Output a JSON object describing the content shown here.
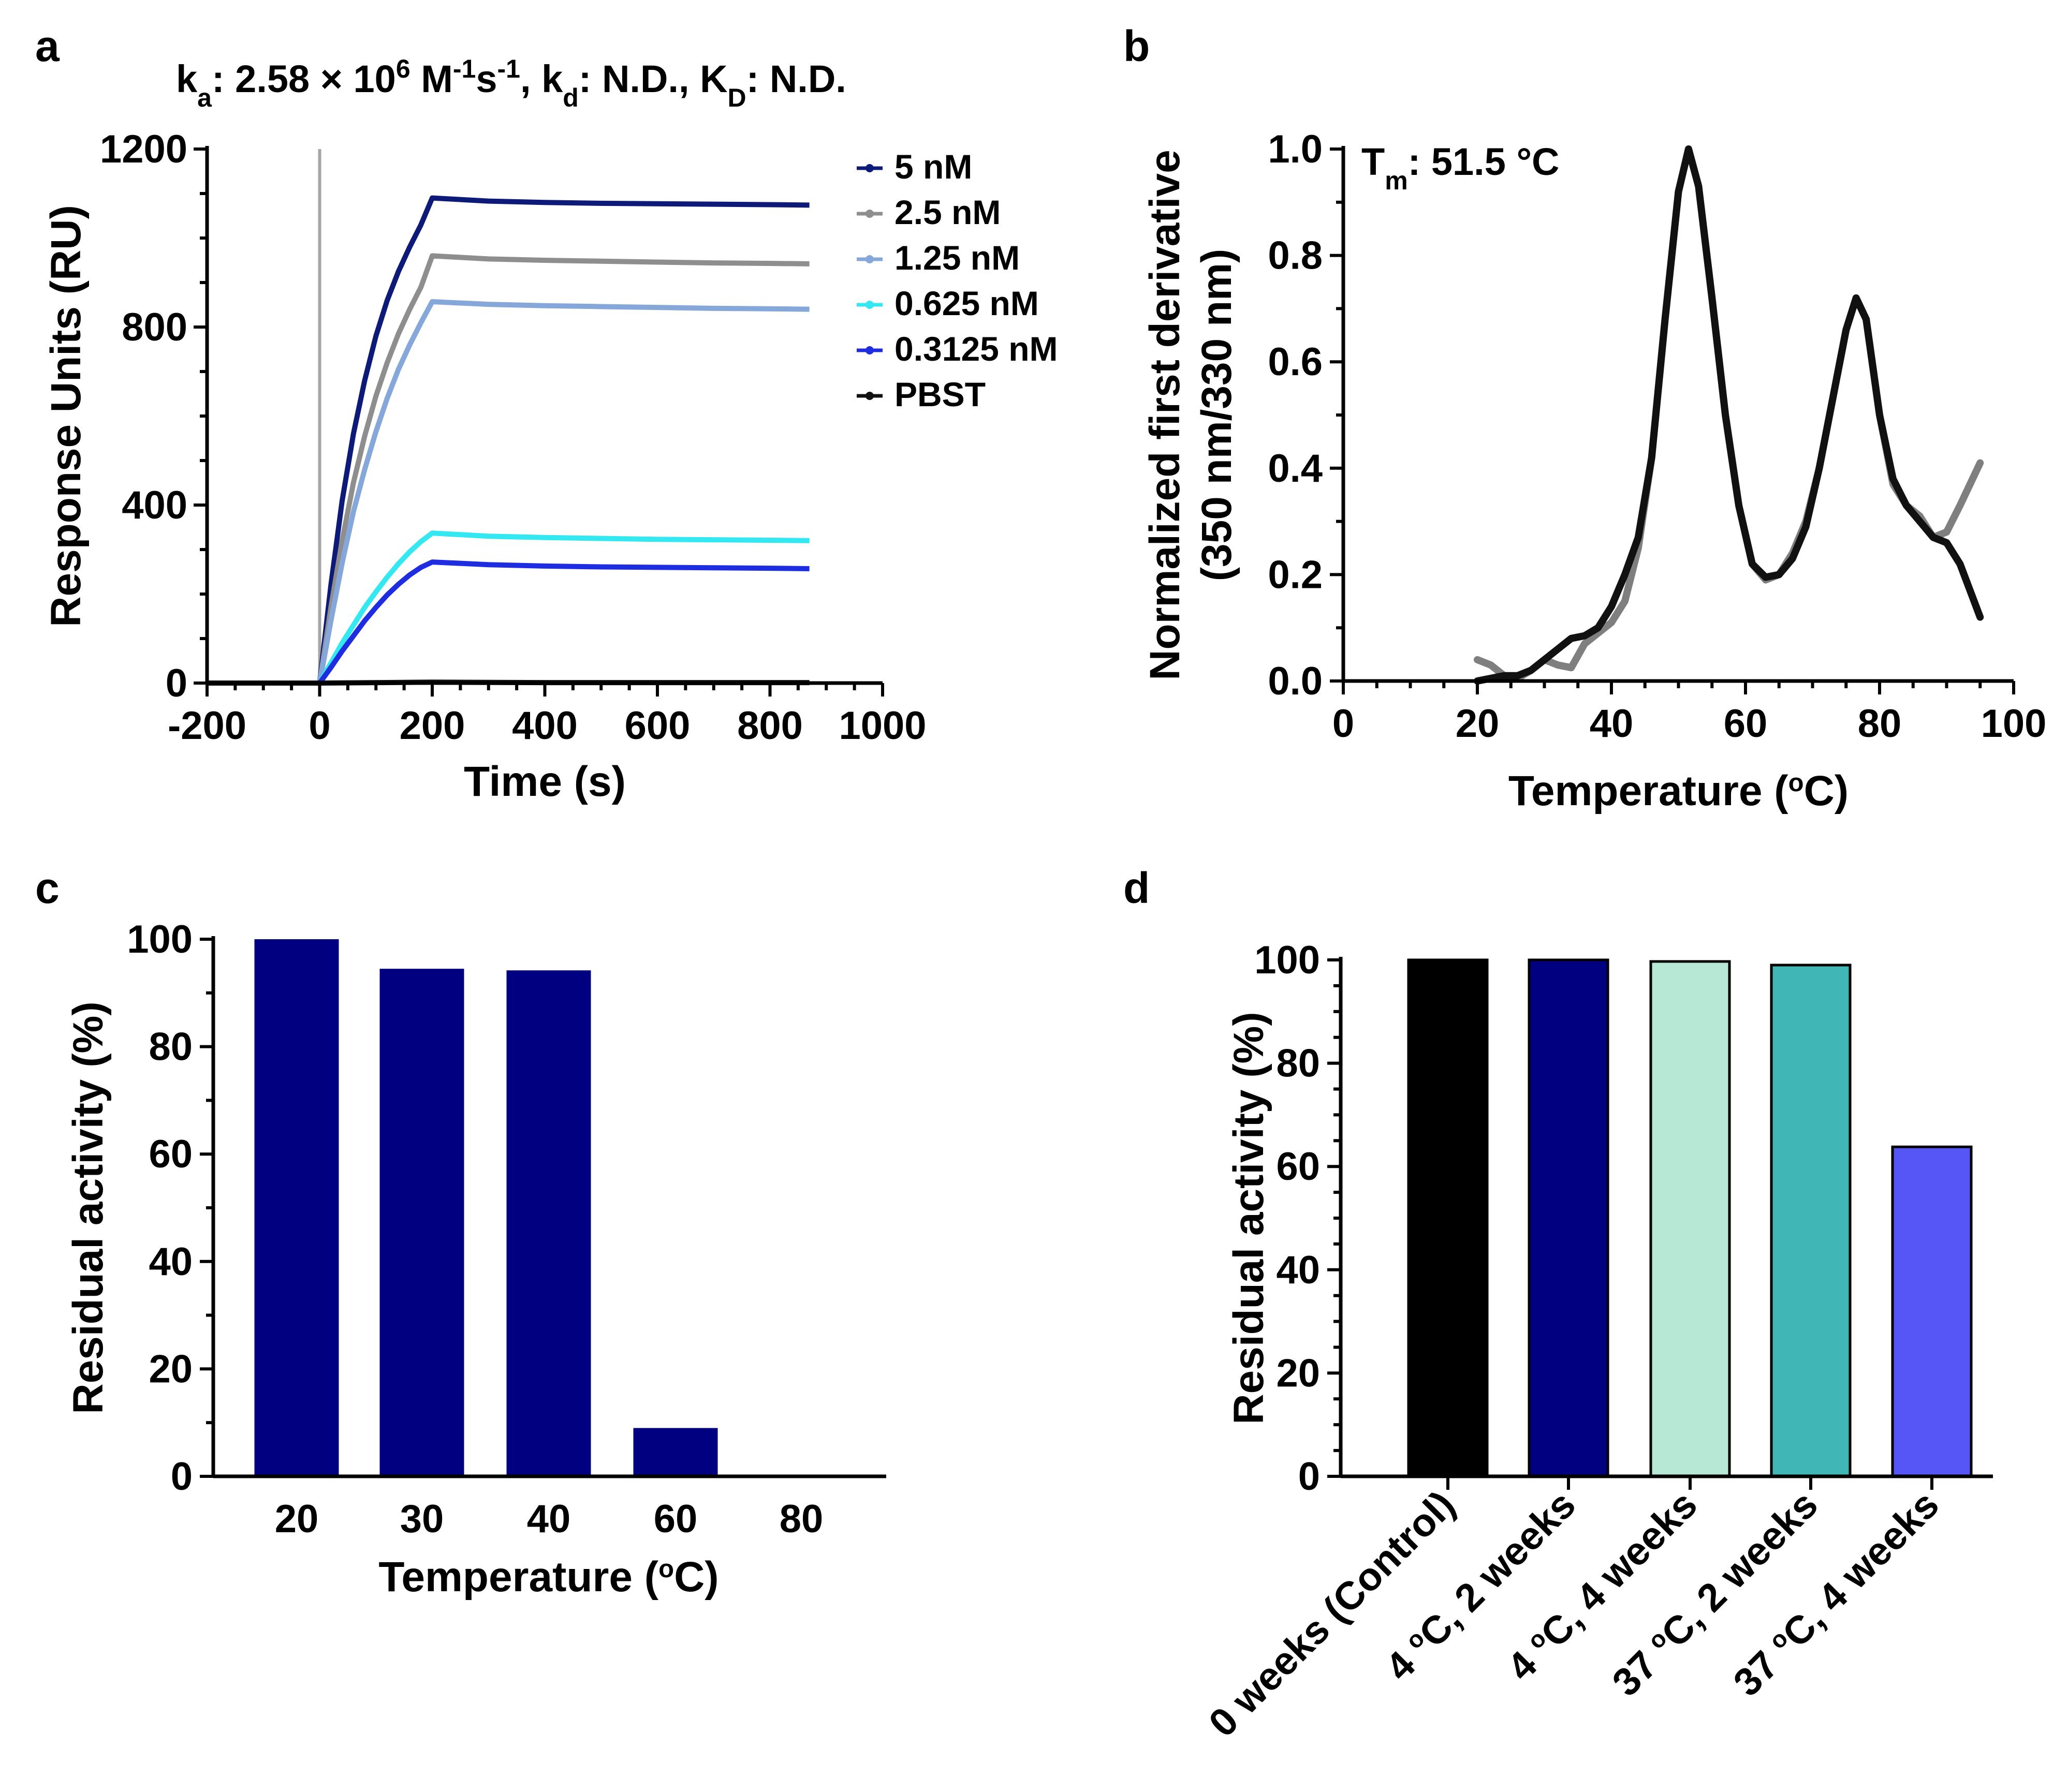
{
  "figure": {
    "panels": [
      {
        "letter": "a",
        "title_parts": [
          "k",
          "a",
          ": 2.58 × 10",
          "6",
          " M",
          "-1",
          "s",
          "-1",
          ", k",
          "d",
          ": N.D., K",
          "D",
          ": N.D."
        ]
      },
      {
        "letter": "b",
        "annotation_parts": [
          "T",
          "m",
          ": 51.5 °C"
        ]
      },
      {
        "letter": "c"
      },
      {
        "letter": "d"
      }
    ]
  },
  "chart_data": [
    {
      "panel": "a",
      "type": "line",
      "xlabel": "Time (s)",
      "ylabel": "Response Units  (RU)",
      "xlim": [
        -200,
        1000
      ],
      "ylim": [
        0,
        1200
      ],
      "xticks": [
        "-200",
        "0",
        "200",
        "400",
        "600",
        "800",
        "1000"
      ],
      "yticks": [
        "0",
        "400",
        "800",
        "1200"
      ],
      "injection_marker_x": 0,
      "legend_position": "right",
      "series": [
        {
          "name": "5 nM",
          "color": "#0d1a78",
          "points": [
            [
              -200,
              0
            ],
            [
              0,
              0
            ],
            [
              20,
              220
            ],
            [
              40,
              410
            ],
            [
              60,
              560
            ],
            [
              80,
              680
            ],
            [
              100,
              780
            ],
            [
              120,
              860
            ],
            [
              140,
              925
            ],
            [
              160,
              980
            ],
            [
              180,
              1030
            ],
            [
              200,
              1090
            ],
            [
              300,
              1083
            ],
            [
              400,
              1080
            ],
            [
              500,
              1078
            ],
            [
              600,
              1077
            ],
            [
              700,
              1076
            ],
            [
              800,
              1075
            ],
            [
              870,
              1074
            ]
          ]
        },
        {
          "name": "2.5 nM",
          "color": "#8e8e8e",
          "points": [
            [
              -200,
              0
            ],
            [
              0,
              0
            ],
            [
              20,
              170
            ],
            [
              40,
              320
            ],
            [
              60,
              450
            ],
            [
              80,
              555
            ],
            [
              100,
              645
            ],
            [
              120,
              720
            ],
            [
              140,
              785
            ],
            [
              160,
              840
            ],
            [
              180,
              890
            ],
            [
              200,
              960
            ],
            [
              300,
              953
            ],
            [
              400,
              950
            ],
            [
              500,
              948
            ],
            [
              600,
              946
            ],
            [
              700,
              944
            ],
            [
              800,
              943
            ],
            [
              870,
              942
            ]
          ]
        },
        {
          "name": "1.25 nM",
          "color": "#86a7d9",
          "points": [
            [
              -200,
              0
            ],
            [
              0,
              0
            ],
            [
              20,
              140
            ],
            [
              40,
              270
            ],
            [
              60,
              385
            ],
            [
              80,
              480
            ],
            [
              100,
              565
            ],
            [
              120,
              640
            ],
            [
              140,
              705
            ],
            [
              160,
              760
            ],
            [
              180,
              810
            ],
            [
              200,
              857
            ],
            [
              300,
              851
            ],
            [
              400,
              848
            ],
            [
              500,
              846
            ],
            [
              600,
              844
            ],
            [
              700,
              842
            ],
            [
              800,
              841
            ],
            [
              870,
              840
            ]
          ]
        },
        {
          "name": "0.625 nM",
          "color": "#33e8f0",
          "points": [
            [
              -200,
              0
            ],
            [
              0,
              0
            ],
            [
              20,
              45
            ],
            [
              40,
              90
            ],
            [
              60,
              130
            ],
            [
              80,
              170
            ],
            [
              100,
              205
            ],
            [
              120,
              238
            ],
            [
              140,
              268
            ],
            [
              160,
              295
            ],
            [
              180,
              318
            ],
            [
              200,
              337
            ],
            [
              300,
              330
            ],
            [
              400,
              327
            ],
            [
              500,
              325
            ],
            [
              600,
              323
            ],
            [
              700,
              322
            ],
            [
              800,
              321
            ],
            [
              870,
              320
            ]
          ]
        },
        {
          "name": "0.3125 nM",
          "color": "#1f2de0",
          "points": [
            [
              -200,
              0
            ],
            [
              0,
              0
            ],
            [
              20,
              35
            ],
            [
              40,
              72
            ],
            [
              60,
              106
            ],
            [
              80,
              140
            ],
            [
              100,
              170
            ],
            [
              120,
              198
            ],
            [
              140,
              222
            ],
            [
              160,
              243
            ],
            [
              180,
              260
            ],
            [
              200,
              272
            ],
            [
              300,
              266
            ],
            [
              400,
              263
            ],
            [
              500,
              261
            ],
            [
              600,
              260
            ],
            [
              700,
              259
            ],
            [
              800,
              258
            ],
            [
              870,
              257
            ]
          ]
        },
        {
          "name": "PBST",
          "color": "#111111",
          "points": [
            [
              -200,
              0
            ],
            [
              0,
              0
            ],
            [
              200,
              2
            ],
            [
              400,
              1
            ],
            [
              600,
              1
            ],
            [
              800,
              1
            ],
            [
              870,
              1
            ]
          ]
        }
      ]
    },
    {
      "panel": "b",
      "type": "line",
      "xlabel": "Temperature (°C)",
      "ylabel": [
        "Normalized first derivative",
        "(350 nm/330 nm)"
      ],
      "xlim": [
        0,
        100
      ],
      "ylim": [
        0,
        1.0
      ],
      "xticks": [
        "0",
        "20",
        "40",
        "60",
        "80",
        "100"
      ],
      "yticks": [
        "0.0",
        "0.2",
        "0.4",
        "0.6",
        "0.8",
        "1.0"
      ],
      "series": [
        {
          "color": "#7f7f7f",
          "points": [
            [
              20,
              0.04
            ],
            [
              22,
              0.03
            ],
            [
              24,
              0.01
            ],
            [
              26,
              0.005
            ],
            [
              28,
              0.02
            ],
            [
              30,
              0.04
            ],
            [
              32,
              0.03
            ],
            [
              34,
              0.025
            ],
            [
              36,
              0.07
            ],
            [
              38,
              0.09
            ],
            [
              40,
              0.11
            ],
            [
              42,
              0.15
            ],
            [
              44,
              0.25
            ],
            [
              46,
              0.42
            ],
            [
              48,
              0.68
            ],
            [
              50,
              0.92
            ],
            [
              51.5,
              1.0
            ],
            [
              53,
              0.93
            ],
            [
              55,
              0.72
            ],
            [
              57,
              0.5
            ],
            [
              59,
              0.33
            ],
            [
              61,
              0.22
            ],
            [
              63,
              0.19
            ],
            [
              65,
              0.2
            ],
            [
              67,
              0.24
            ],
            [
              69,
              0.3
            ],
            [
              71,
              0.4
            ],
            [
              73,
              0.53
            ],
            [
              75,
              0.66
            ],
            [
              76.5,
              0.72
            ],
            [
              78,
              0.68
            ],
            [
              80,
              0.5
            ],
            [
              82,
              0.37
            ],
            [
              84,
              0.33
            ],
            [
              86,
              0.31
            ],
            [
              88,
              0.27
            ],
            [
              90,
              0.28
            ],
            [
              92,
              0.33
            ],
            [
              95,
              0.41
            ]
          ]
        },
        {
          "color": "#111111",
          "points": [
            [
              20,
              0.0
            ],
            [
              22,
              0.005
            ],
            [
              24,
              0.01
            ],
            [
              26,
              0.01
            ],
            [
              28,
              0.02
            ],
            [
              30,
              0.04
            ],
            [
              32,
              0.06
            ],
            [
              34,
              0.08
            ],
            [
              36,
              0.085
            ],
            [
              38,
              0.1
            ],
            [
              40,
              0.14
            ],
            [
              42,
              0.2
            ],
            [
              44,
              0.27
            ],
            [
              46,
              0.42
            ],
            [
              48,
              0.68
            ],
            [
              50,
              0.92
            ],
            [
              51.5,
              1.0
            ],
            [
              53,
              0.93
            ],
            [
              55,
              0.72
            ],
            [
              57,
              0.5
            ],
            [
              59,
              0.33
            ],
            [
              61,
              0.22
            ],
            [
              63,
              0.195
            ],
            [
              65,
              0.2
            ],
            [
              67,
              0.23
            ],
            [
              69,
              0.29
            ],
            [
              71,
              0.4
            ],
            [
              73,
              0.53
            ],
            [
              75,
              0.66
            ],
            [
              76.5,
              0.72
            ],
            [
              78,
              0.68
            ],
            [
              80,
              0.5
            ],
            [
              82,
              0.38
            ],
            [
              84,
              0.33
            ],
            [
              86,
              0.3
            ],
            [
              88,
              0.27
            ],
            [
              90,
              0.26
            ],
            [
              92,
              0.22
            ],
            [
              95,
              0.12
            ]
          ]
        }
      ]
    },
    {
      "panel": "c",
      "type": "bar",
      "xlabel": "Temperature (°C)",
      "ylabel": "Residual activity  (%)",
      "ylim": [
        0,
        100
      ],
      "yticks": [
        "0",
        "20",
        "40",
        "60",
        "80",
        "100"
      ],
      "categories": [
        "20",
        "30",
        "40",
        "60",
        "80"
      ],
      "values": [
        100,
        94.5,
        94.2,
        9,
        0
      ],
      "color": "#000080"
    },
    {
      "panel": "d",
      "type": "bar",
      "xlabel": "",
      "ylabel": "Residual activity  (%)",
      "ylim": [
        0,
        100
      ],
      "yticks": [
        "0",
        "20",
        "40",
        "60",
        "80",
        "100"
      ],
      "categories": [
        "0 weeks (Control)",
        "4 °C, 2 weeks",
        "4 °C, 4 weeks",
        "37 °C, 2 weeks",
        "37 °C, 4 weeks"
      ],
      "values": [
        100,
        100,
        99.7,
        99,
        63.8
      ],
      "colors": [
        "#000000",
        "#000080",
        "#b6e8d5",
        "#40b6b6",
        "#5656f7"
      ]
    }
  ]
}
